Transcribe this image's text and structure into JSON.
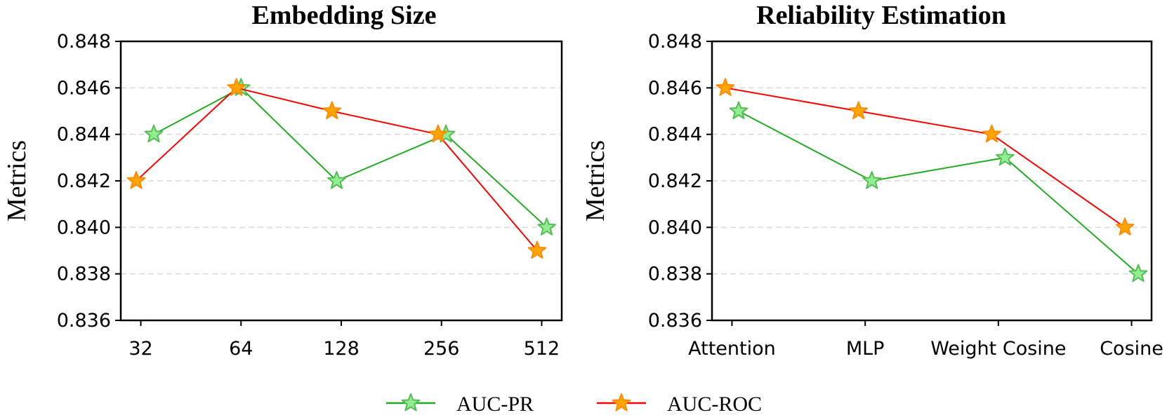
{
  "chart_data": [
    {
      "type": "line",
      "title": "Embedding Size",
      "xlabel": "",
      "ylabel": "Metrics",
      "categories": [
        "32",
        "64",
        "128",
        "256",
        "512"
      ],
      "x": [
        32,
        64,
        128,
        256,
        512
      ],
      "xscale": "log2",
      "ylim": [
        0.836,
        0.848
      ],
      "yticks": [
        "0.836",
        "0.838",
        "0.840",
        "0.842",
        "0.844",
        "0.846",
        "0.848"
      ],
      "grid": true,
      "series": [
        {
          "name": "AUC-PR",
          "x": [
            35,
            64,
            124,
            264,
            530
          ],
          "values": [
            0.844,
            0.846,
            0.842,
            0.844,
            0.84
          ],
          "color": "#22aa22",
          "marker_fill": "#90ee90",
          "marker_edge": "#55bb55"
        },
        {
          "name": "AUC-ROC",
          "x": [
            31,
            62,
            120,
            250,
            496
          ],
          "values": [
            0.842,
            0.846,
            0.845,
            0.844,
            0.839
          ],
          "color": "#ff0000",
          "marker_fill": "#ffa500",
          "marker_edge": "#ff8c00"
        }
      ]
    },
    {
      "type": "line",
      "title": "Reliability Estimation",
      "xlabel": "",
      "ylabel": "Metrics",
      "categories": [
        "Attention",
        "MLP",
        "Weight Cosine",
        "Cosine"
      ],
      "ylim": [
        0.836,
        0.848
      ],
      "yticks": [
        "0.836",
        "0.838",
        "0.840",
        "0.842",
        "0.844",
        "0.846",
        "0.848"
      ],
      "grid": true,
      "series": [
        {
          "name": "AUC-PR",
          "x": [
            0.05,
            1.05,
            2.05,
            3.05
          ],
          "values": [
            0.845,
            0.842,
            0.843,
            0.838
          ],
          "color": "#22aa22",
          "marker_fill": "#90ee90",
          "marker_edge": "#55bb55"
        },
        {
          "name": "AUC-ROC",
          "x": [
            -0.05,
            0.95,
            1.95,
            2.95
          ],
          "values": [
            0.846,
            0.845,
            0.844,
            0.84
          ],
          "color": "#ff0000",
          "marker_fill": "#ffa500",
          "marker_edge": "#ff8c00"
        }
      ]
    }
  ],
  "legend": {
    "placement": "bottom-center",
    "entries": [
      {
        "label": "AUC-PR",
        "color": "#22aa22",
        "marker_fill": "#90ee90",
        "marker_edge": "#55bb55"
      },
      {
        "label": "AUC-ROC",
        "color": "#ff0000",
        "marker_fill": "#ffa500",
        "marker_edge": "#ff8c00"
      }
    ]
  }
}
